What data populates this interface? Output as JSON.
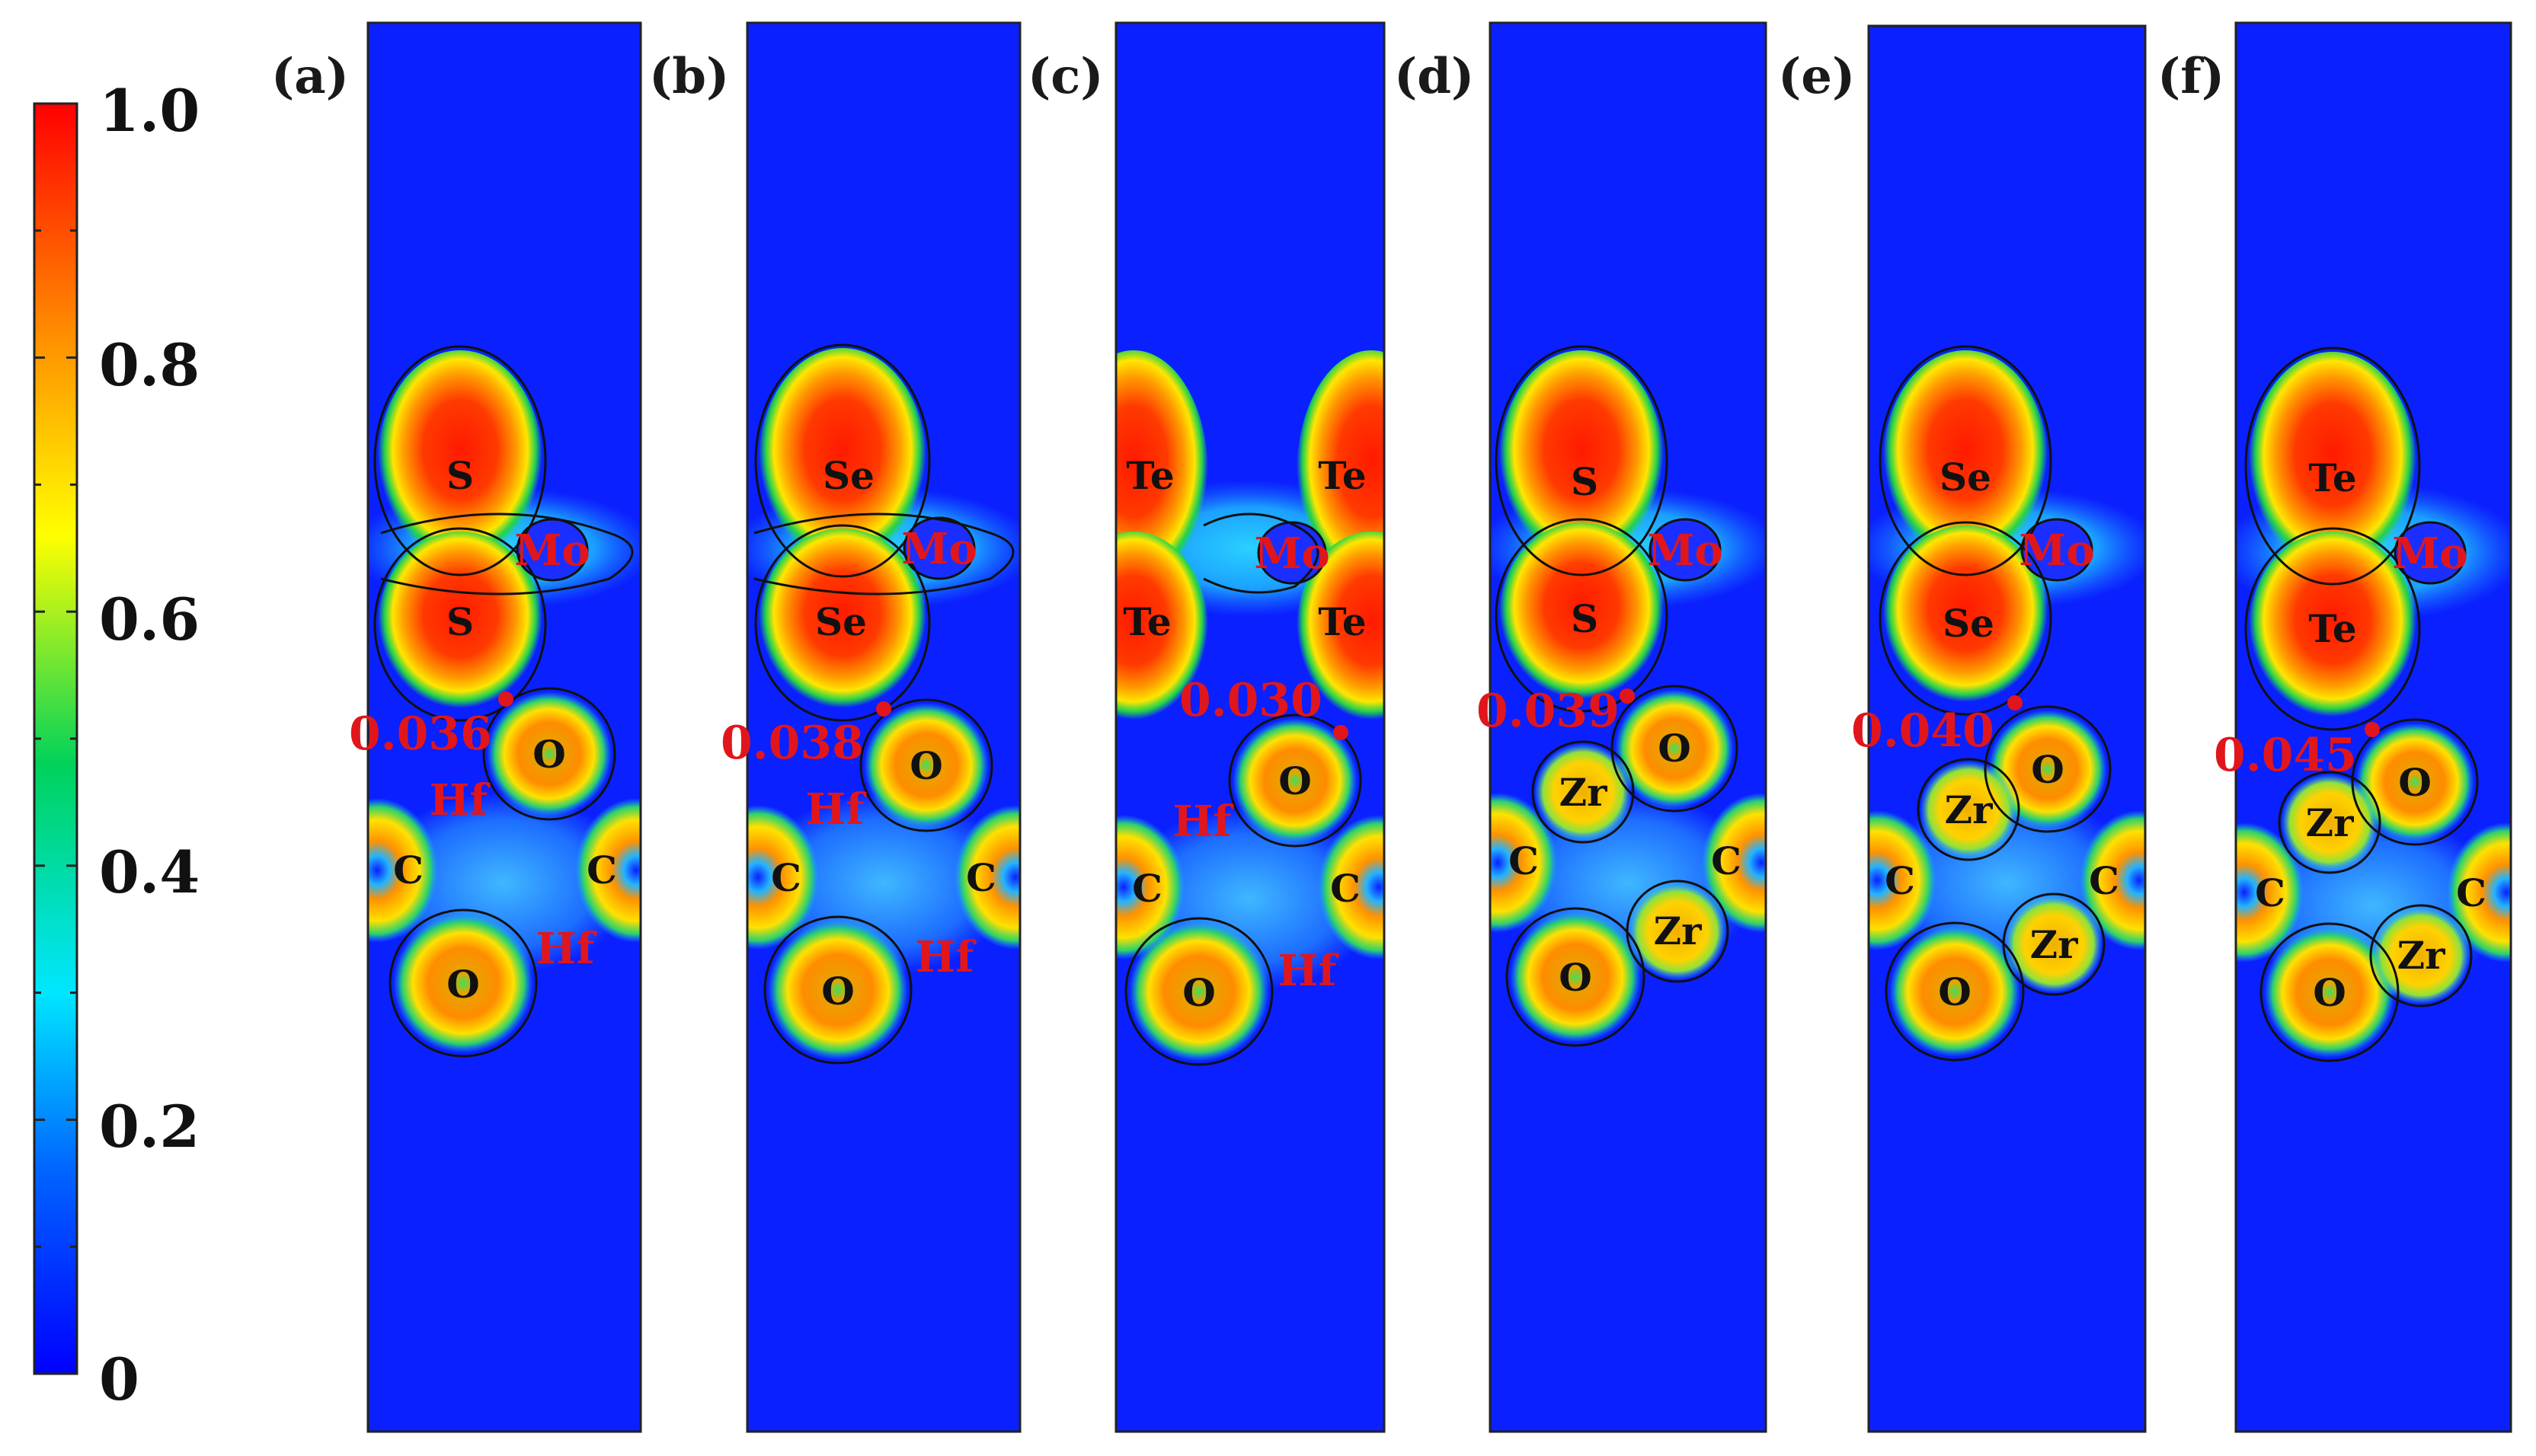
{
  "colorbar": {
    "tick_labels": [
      "1.0",
      "0.8",
      "0.6",
      "0.4",
      "0.2",
      "0"
    ],
    "colors": [
      "#0000ff",
      "#0064ff",
      "#00e6ff",
      "#00d25a",
      "#ffff00",
      "#ff8c00",
      "#ff0000"
    ]
  },
  "colors": {
    "background_blue": "#0a20ff",
    "contour": "#101010",
    "label_red": "#e0161c",
    "bcp_marker": "#e0161c"
  },
  "panels": [
    {
      "letter": "(a)",
      "chalcogen": "S",
      "metal": "Hf",
      "mo": "Mo",
      "carbon": "C",
      "oxygen": "O",
      "elf": "0.036"
    },
    {
      "letter": "(b)",
      "chalcogen": "Se",
      "metal": "Hf",
      "mo": "Mo",
      "carbon": "C",
      "oxygen": "O",
      "elf": "0.038"
    },
    {
      "letter": "(c)",
      "chalcogen": "Te",
      "metal": "Hf",
      "mo": "Mo",
      "carbon": "C",
      "oxygen": "O",
      "elf": "0.030"
    },
    {
      "letter": "(d)",
      "chalcogen": "S",
      "metal": "Zr",
      "mo": "Mo",
      "carbon": "C",
      "oxygen": "O",
      "elf": "0.039"
    },
    {
      "letter": "(e)",
      "chalcogen": "Se",
      "metal": "Zr",
      "mo": "Mo",
      "carbon": "C",
      "oxygen": "O",
      "elf": "0.040"
    },
    {
      "letter": "(f)",
      "chalcogen": "Te",
      "metal": "Zr",
      "mo": "Mo",
      "carbon": "C",
      "oxygen": "O",
      "elf": "0.045"
    }
  ]
}
